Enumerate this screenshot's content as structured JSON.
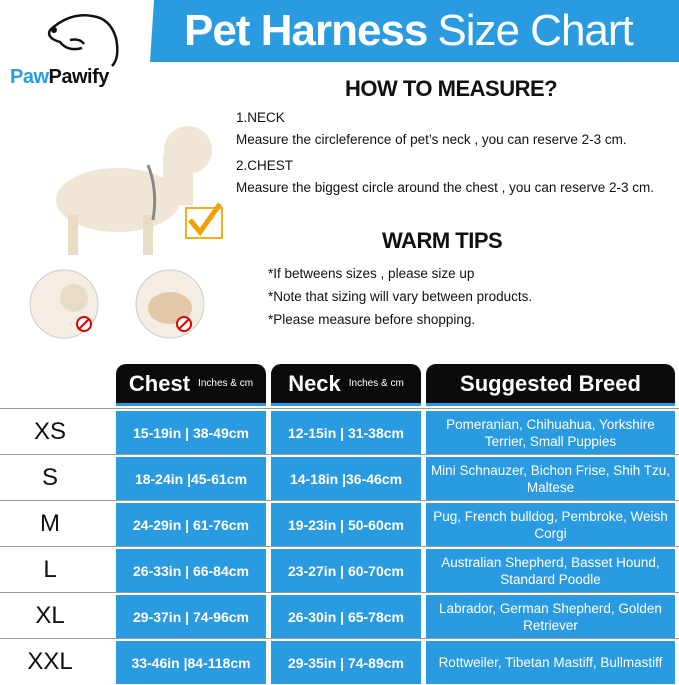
{
  "header": {
    "title_bold": "Pet Harness",
    "title_light": "Size Chart"
  },
  "brand": {
    "part1": "Paw",
    "part2": "Pawify"
  },
  "measure": {
    "heading": "HOW TO MEASURE?",
    "neck_title": "1.NECK",
    "neck_text": "Measure the circleference of pet’s neck , you can reserve 2-3 cm.",
    "chest_title": "2.CHEST",
    "chest_text": "Measure the biggest circle around the chest , you can reserve 2-3 cm."
  },
  "tips": {
    "heading": "WARM TIPS",
    "items": [
      "*If betweens sizes , please size up",
      "*Note that sizing will vary between products.",
      "*Please measure before shopping."
    ]
  },
  "colors": {
    "accent": "#2a9be0",
    "header_bg": "#0b0b0b"
  },
  "table": {
    "headers": {
      "chest": "Chest",
      "chest_unit": "Inches & cm",
      "neck": "Neck",
      "neck_unit": "Inches & cm",
      "breed": "Suggested Breed"
    },
    "rows": [
      {
        "size": "XS",
        "chest": "15-19in | 38-49cm",
        "neck": "12-15in | 31-38cm",
        "breed": "Pomeranian, Chihuahua, Yorkshire Terrier, Small Puppies"
      },
      {
        "size": "S",
        "chest": "18-24in |45-61cm",
        "neck": "14-18in |36-46cm",
        "breed": "Mini Schnauzer, Bichon Frise, Shih Tzu, Maltese"
      },
      {
        "size": "M",
        "chest": "24-29in | 61-76cm",
        "neck": "19-23in | 50-60cm",
        "breed": "Pug, French bulldog, Pembroke, Weish Corgi"
      },
      {
        "size": "L",
        "chest": "26-33in | 66-84cm",
        "neck": "23-27in | 60-70cm",
        "breed": "Australian Shepherd, Basset Hound, Standard Poodle"
      },
      {
        "size": "XL",
        "chest": "29-37in | 74-96cm",
        "neck": "26-30in | 65-78cm",
        "breed": "Labrador, German Shepherd, Golden Retriever"
      },
      {
        "size": "XXL",
        "chest": "33-46in |84-118cm",
        "neck": "29-35in | 74-89cm",
        "breed": "Rottweiler, Tibetan Mastiff, Bullmastiff"
      }
    ]
  }
}
